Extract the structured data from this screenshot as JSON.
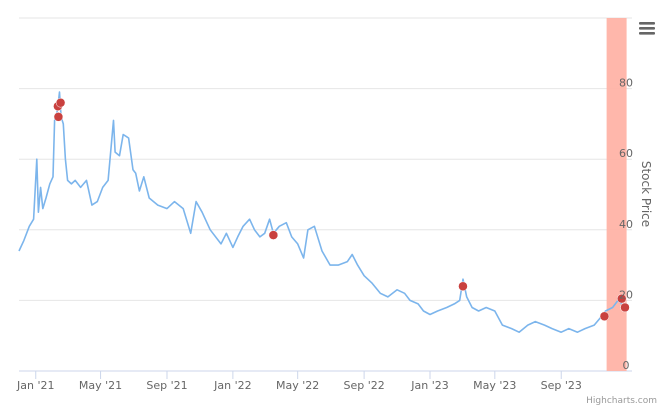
{
  "chart_data": {
    "type": "line",
    "title": "",
    "xlabel": "",
    "ylabel": "Stock Price",
    "ylim": [
      0,
      100
    ],
    "y_ticks": [
      "0",
      "20",
      "40",
      "60",
      "80"
    ],
    "x_ticks": [
      "Jan '21",
      "May '21",
      "Sep '21",
      "Jan '22",
      "May '22",
      "Sep '22",
      "Jan '23",
      "May '23",
      "Sep '23"
    ],
    "x_tick_dates": [
      "2021-01-01",
      "2021-05-01",
      "2021-09-01",
      "2022-01-01",
      "2022-05-01",
      "2022-09-01",
      "2023-01-01",
      "2023-05-01",
      "2023-09-01"
    ],
    "xlim": [
      "2020-12-01",
      "2024-01-10"
    ],
    "grid": true,
    "series": [
      {
        "color": "#7cb5ec",
        "points": [
          [
            "2020-12-01",
            34
          ],
          [
            "2020-12-10",
            37
          ],
          [
            "2020-12-20",
            41
          ],
          [
            "2020-12-28",
            43
          ],
          [
            "2021-01-03",
            60
          ],
          [
            "2021-01-06",
            45
          ],
          [
            "2021-01-10",
            52
          ],
          [
            "2021-01-14",
            46
          ],
          [
            "2021-01-20",
            49
          ],
          [
            "2021-01-27",
            53
          ],
          [
            "2021-02-02",
            55
          ],
          [
            "2021-02-05",
            71
          ],
          [
            "2021-02-08",
            72
          ],
          [
            "2021-02-11",
            75
          ],
          [
            "2021-02-14",
            79
          ],
          [
            "2021-02-17",
            72
          ],
          [
            "2021-02-21",
            70
          ],
          [
            "2021-02-25",
            60
          ],
          [
            "2021-03-01",
            54
          ],
          [
            "2021-03-08",
            53
          ],
          [
            "2021-03-15",
            54
          ],
          [
            "2021-03-25",
            52
          ],
          [
            "2021-04-05",
            54
          ],
          [
            "2021-04-15",
            47
          ],
          [
            "2021-04-25",
            48
          ],
          [
            "2021-05-05",
            52
          ],
          [
            "2021-05-15",
            54
          ],
          [
            "2021-05-25",
            71
          ],
          [
            "2021-05-28",
            62
          ],
          [
            "2021-06-05",
            61
          ],
          [
            "2021-06-12",
            67
          ],
          [
            "2021-06-22",
            66
          ],
          [
            "2021-06-30",
            57
          ],
          [
            "2021-07-05",
            56
          ],
          [
            "2021-07-12",
            51
          ],
          [
            "2021-07-20",
            55
          ],
          [
            "2021-07-30",
            49
          ],
          [
            "2021-08-15",
            47
          ],
          [
            "2021-09-01",
            46
          ],
          [
            "2021-09-15",
            48
          ],
          [
            "2021-10-01",
            46
          ],
          [
            "2021-10-15",
            39
          ],
          [
            "2021-10-25",
            48
          ],
          [
            "2021-11-05",
            45
          ],
          [
            "2021-11-20",
            40
          ],
          [
            "2021-12-10",
            36
          ],
          [
            "2021-12-20",
            39
          ],
          [
            "2022-01-01",
            35
          ],
          [
            "2022-01-10",
            38
          ],
          [
            "2022-01-20",
            41
          ],
          [
            "2022-02-01",
            43
          ],
          [
            "2022-02-10",
            40
          ],
          [
            "2022-02-20",
            38
          ],
          [
            "2022-03-01",
            39
          ],
          [
            "2022-03-10",
            43
          ],
          [
            "2022-03-17",
            39
          ],
          [
            "2022-03-28",
            41
          ],
          [
            "2022-04-10",
            42
          ],
          [
            "2022-04-20",
            38
          ],
          [
            "2022-05-01",
            36
          ],
          [
            "2022-05-12",
            32
          ],
          [
            "2022-05-20",
            40
          ],
          [
            "2022-06-01",
            41
          ],
          [
            "2022-06-15",
            34
          ],
          [
            "2022-06-30",
            30
          ],
          [
            "2022-07-15",
            30
          ],
          [
            "2022-08-01",
            31
          ],
          [
            "2022-08-10",
            33
          ],
          [
            "2022-08-20",
            30
          ],
          [
            "2022-09-01",
            27
          ],
          [
            "2022-09-15",
            25
          ],
          [
            "2022-10-01",
            22
          ],
          [
            "2022-10-15",
            21
          ],
          [
            "2022-11-01",
            23
          ],
          [
            "2022-11-15",
            22
          ],
          [
            "2022-11-25",
            20
          ],
          [
            "2022-12-10",
            19
          ],
          [
            "2022-12-20",
            17
          ],
          [
            "2023-01-01",
            16
          ],
          [
            "2023-01-15",
            17
          ],
          [
            "2023-02-01",
            18
          ],
          [
            "2023-02-15",
            19
          ],
          [
            "2023-02-25",
            20
          ],
          [
            "2023-03-03",
            26
          ],
          [
            "2023-03-10",
            21
          ],
          [
            "2023-03-20",
            18
          ],
          [
            "2023-04-01",
            17
          ],
          [
            "2023-04-15",
            18
          ],
          [
            "2023-05-01",
            17
          ],
          [
            "2023-05-15",
            13
          ],
          [
            "2023-06-01",
            12
          ],
          [
            "2023-06-15",
            11
          ],
          [
            "2023-07-01",
            13
          ],
          [
            "2023-07-15",
            14
          ],
          [
            "2023-08-01",
            13
          ],
          [
            "2023-08-15",
            12
          ],
          [
            "2023-09-01",
            11
          ],
          [
            "2023-09-15",
            12
          ],
          [
            "2023-10-01",
            11
          ],
          [
            "2023-10-15",
            12
          ],
          [
            "2023-11-01",
            13
          ],
          [
            "2023-11-12",
            15
          ],
          [
            "2023-11-22",
            17
          ],
          [
            "2023-12-05",
            18
          ],
          [
            "2023-12-15",
            20
          ],
          [
            "2023-12-22",
            19
          ],
          [
            "2024-01-01",
            18
          ]
        ]
      }
    ],
    "markers": {
      "color": "#c9413f",
      "points": [
        [
          "2021-02-11",
          75
        ],
        [
          "2021-02-12",
          72
        ],
        [
          "2021-02-16",
          76
        ],
        [
          "2022-03-17",
          38.5
        ],
        [
          "2023-03-03",
          24
        ],
        [
          "2023-11-20",
          15.5
        ],
        [
          "2023-12-22",
          20.5
        ],
        [
          "2023-12-28",
          18
        ]
      ]
    },
    "highlight_band": {
      "from": "2023-11-24",
      "to": "2023-12-31",
      "color": "#ffb3a7"
    }
  },
  "ui": {
    "menu_icon": "hamburger-menu-icon",
    "credits": "Highcharts.com"
  }
}
